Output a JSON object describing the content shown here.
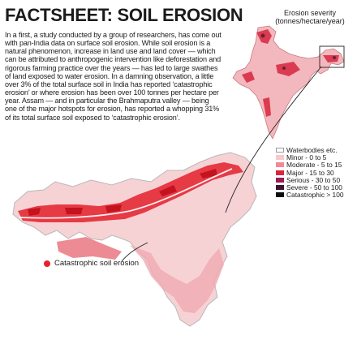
{
  "headline": "FACTSHEET: SOIL EROSION",
  "body_text": "In a first, a study conducted by a group of researchers, has come out with pan-India data on surface soil erosion. While soil erosion is a natural phenomenon, increase in land use and land cover — which can be attributed to anthropogenic intervention like deforestation and rigorous farming practice over the years — has led to large swathes of land exposed to water erosion. In a damning observation, a little over 3% of the total surface soil in India has reported ‘catastrophic erosion’ or where erosion has been over 100 tonnes per hectare per year. Assam — and in particular the Brahmaputra valley — being one of the major hotspots for erosion, has reported a whopping 31% of its total surface soil exposed to ‘catastrophic erosion’.",
  "legend": {
    "title": "Erosion severity",
    "unit": "(tonnes/hectare/year)",
    "items": [
      {
        "label": "Waterbodies etc.",
        "color": "#ffffff"
      },
      {
        "label": "Minor - 0 to 5",
        "color": "#f6c9cc"
      },
      {
        "label": "Moderate - 5 to 15",
        "color": "#f08a93"
      },
      {
        "label": "Major - 15 to 30",
        "color": "#d7263d"
      },
      {
        "label": "Serious - 30 to 50",
        "color": "#9b1b4f"
      },
      {
        "label": "Severe - 50 to 100",
        "color": "#3d1331"
      },
      {
        "label": "Catastrophic > 100",
        "color": "#0d0d0d"
      }
    ]
  },
  "callout": {
    "label": "Catastrophic soil erosion",
    "color": "#e8212b"
  },
  "map_colors": {
    "region_fill": "#f3b8bd",
    "hotspot": "#e3202b",
    "outline": "#b8b8b8",
    "river": "#ffffff"
  }
}
